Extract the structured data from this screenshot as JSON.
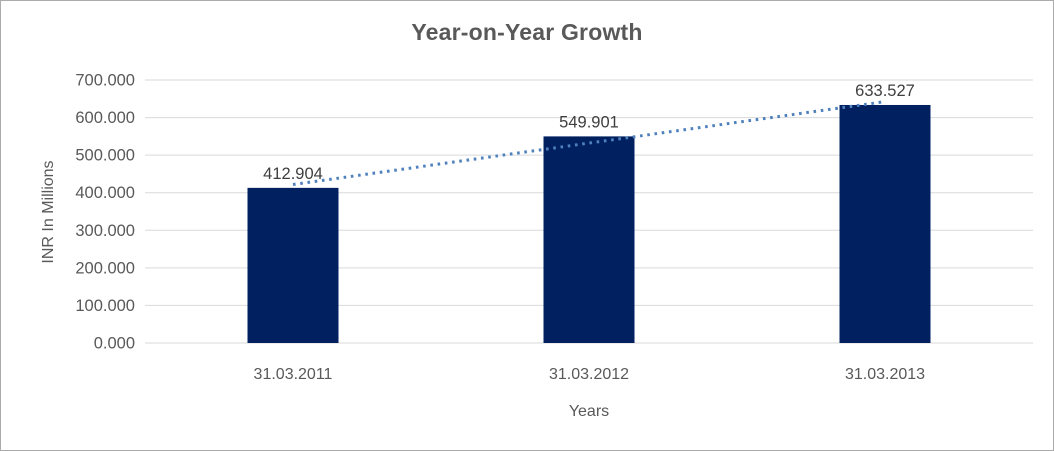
{
  "chart_data": {
    "type": "bar",
    "title": "Year-on-Year Growth",
    "xlabel": "Years",
    "ylabel": "INR In Millions",
    "categories": [
      "31.03.2011",
      "31.03.2012",
      "31.03.2013"
    ],
    "values": [
      412.904,
      549.901,
      633.527
    ],
    "data_labels": [
      "412.904",
      "549.901",
      "633.527"
    ],
    "ylim": [
      0,
      700
    ],
    "ytick_step": 100,
    "ytick_labels": [
      "0.000",
      "100.000",
      "200.000",
      "300.000",
      "400.000",
      "500.000",
      "600.000",
      "700.000"
    ],
    "grid": true,
    "legend": "none",
    "bar_color": "#002060",
    "trendline": {
      "type": "linear",
      "style": "dotted",
      "color": "#4F81BD"
    },
    "colors": {
      "title": "#595959",
      "axis_text": "#595959",
      "data_label": "#3F3F3F",
      "gridline": "#D9D9D9",
      "frame_border": "#ABABAB",
      "background": "#FFFFFF"
    }
  }
}
